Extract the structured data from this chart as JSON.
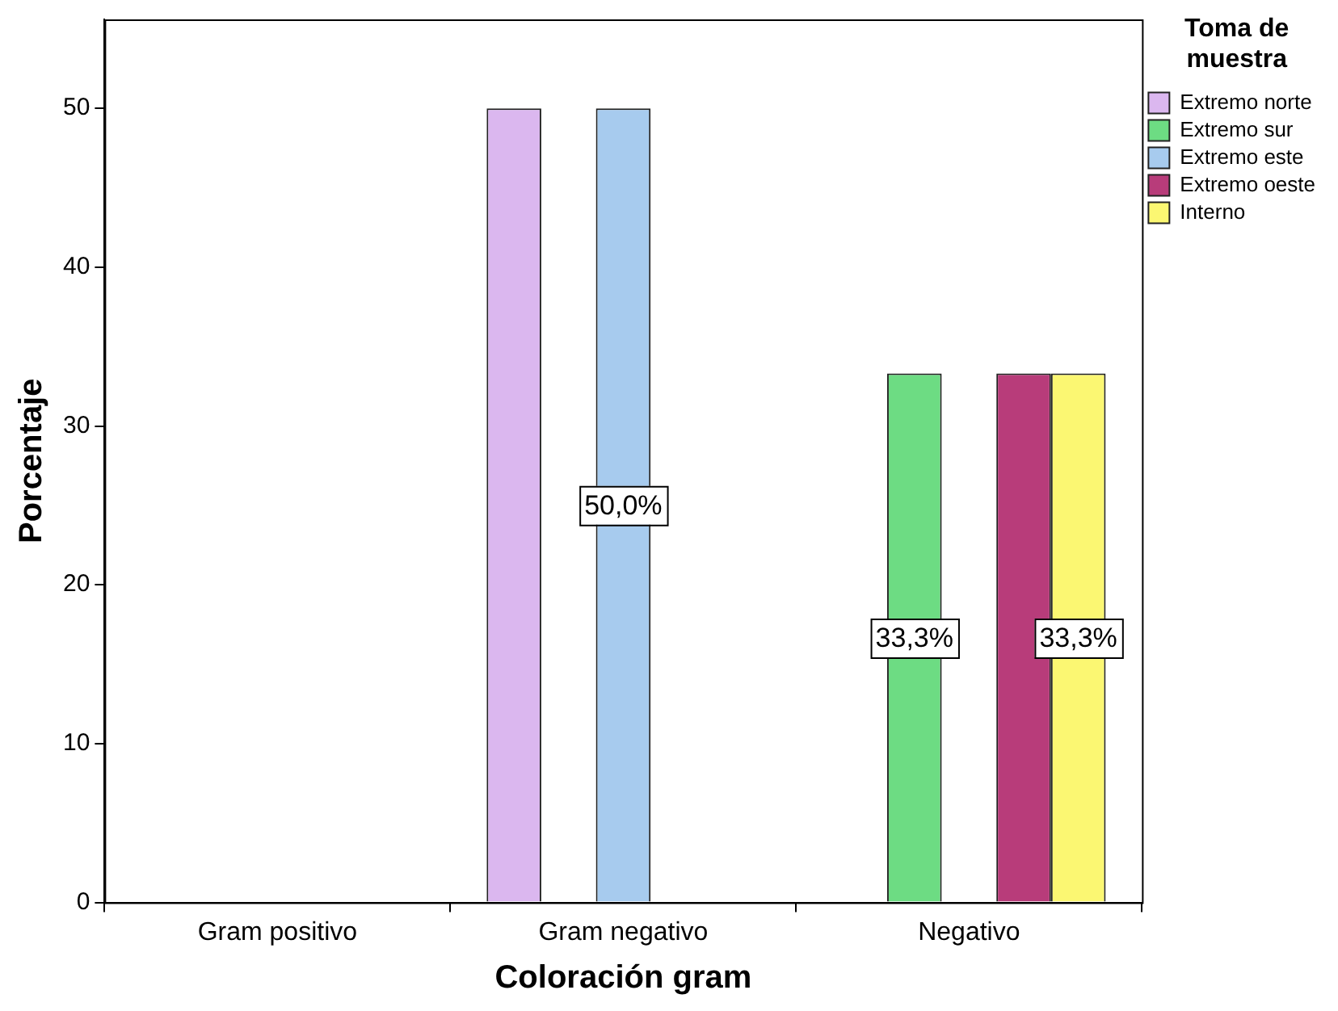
{
  "chart_data": {
    "type": "bar",
    "xlabel": "Coloración gram",
    "ylabel": "Porcentaje",
    "legend_title": "Toma de muestra",
    "legend": "top right",
    "categories": [
      "Gram positivo",
      "Gram negativo",
      "Negativo"
    ],
    "ylim": [
      0,
      55.6
    ],
    "yticks": [
      0,
      10,
      20,
      30,
      40,
      50
    ],
    "series": [
      {
        "name": "Extremo norte",
        "color": "#dbb7ef",
        "values": [
          null,
          50,
          null
        ],
        "value_labels": [
          null,
          null,
          null
        ]
      },
      {
        "name": "Extremo sur",
        "color": "#6ddc83",
        "values": [
          null,
          null,
          33.3
        ],
        "value_labels": [
          null,
          null,
          "33,3%"
        ]
      },
      {
        "name": "Extremo este",
        "color": "#a7cbee",
        "values": [
          null,
          50,
          null
        ],
        "value_labels": [
          null,
          "50,0%",
          null
        ]
      },
      {
        "name": "Extremo oeste",
        "color": "#b83c7a",
        "values": [
          null,
          null,
          33.3
        ],
        "value_labels": [
          null,
          null,
          null
        ]
      },
      {
        "name": "Interno",
        "color": "#fbf772",
        "values": [
          null,
          null,
          33.3
        ],
        "value_labels": [
          null,
          null,
          "33,3%"
        ]
      }
    ]
  }
}
